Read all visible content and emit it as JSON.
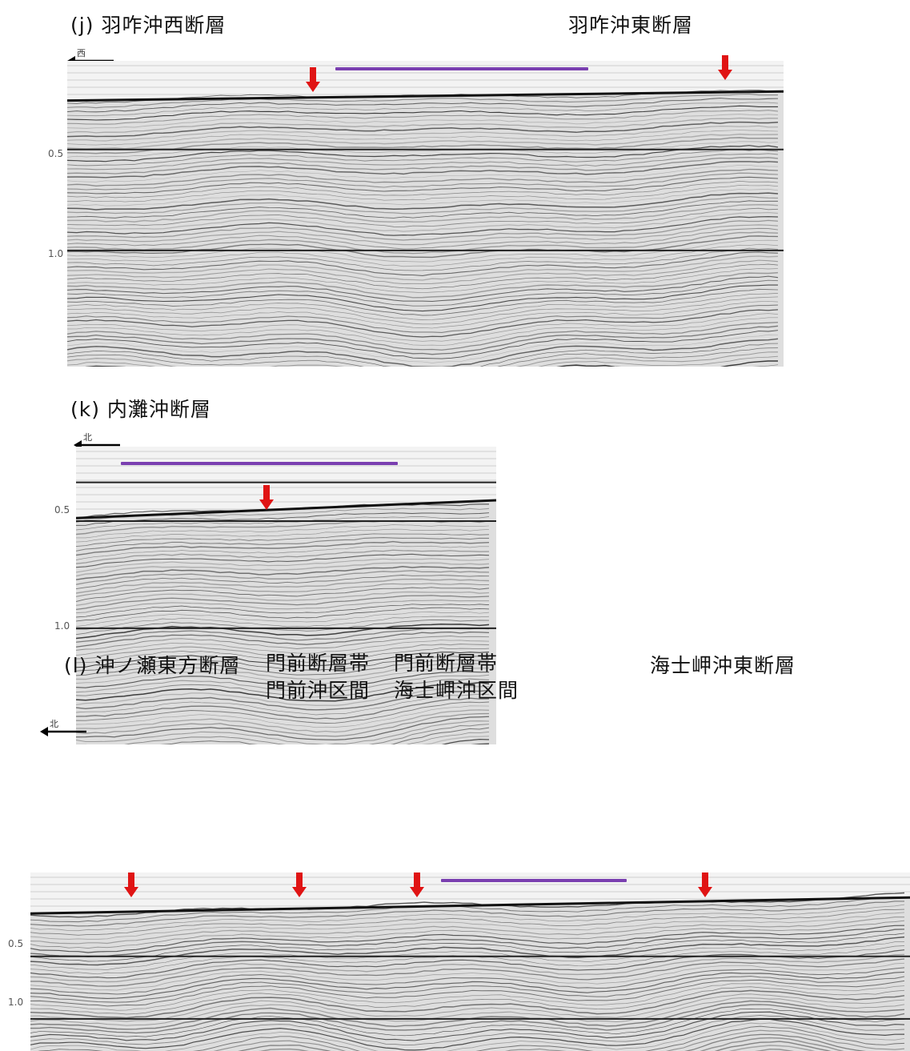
{
  "panel_j": {
    "title": "(j) 羽咋沖西断層",
    "right_label": "羽咋沖東断層",
    "direction": "西",
    "ticks": [
      "0.5",
      "1.0"
    ]
  },
  "panel_k": {
    "title": "(k) 内灘沖断層",
    "direction": "北",
    "ticks": [
      "0.5",
      "1.0"
    ]
  },
  "panel_l": {
    "title": "(l) 沖ノ瀬東方断層",
    "label_2_line1": "門前断層帯",
    "label_2_line2": "門前沖区間",
    "label_3_line1": "門前断層帯",
    "label_3_line2": "海士岬沖区間",
    "label_4": "海士岬沖東断層",
    "direction": "北",
    "ticks": [
      "0.5",
      "1.0"
    ]
  },
  "colors": {
    "fault_arrow": "#e01414",
    "extent_bar": "#7a3fb0",
    "horizon": "#222222"
  }
}
